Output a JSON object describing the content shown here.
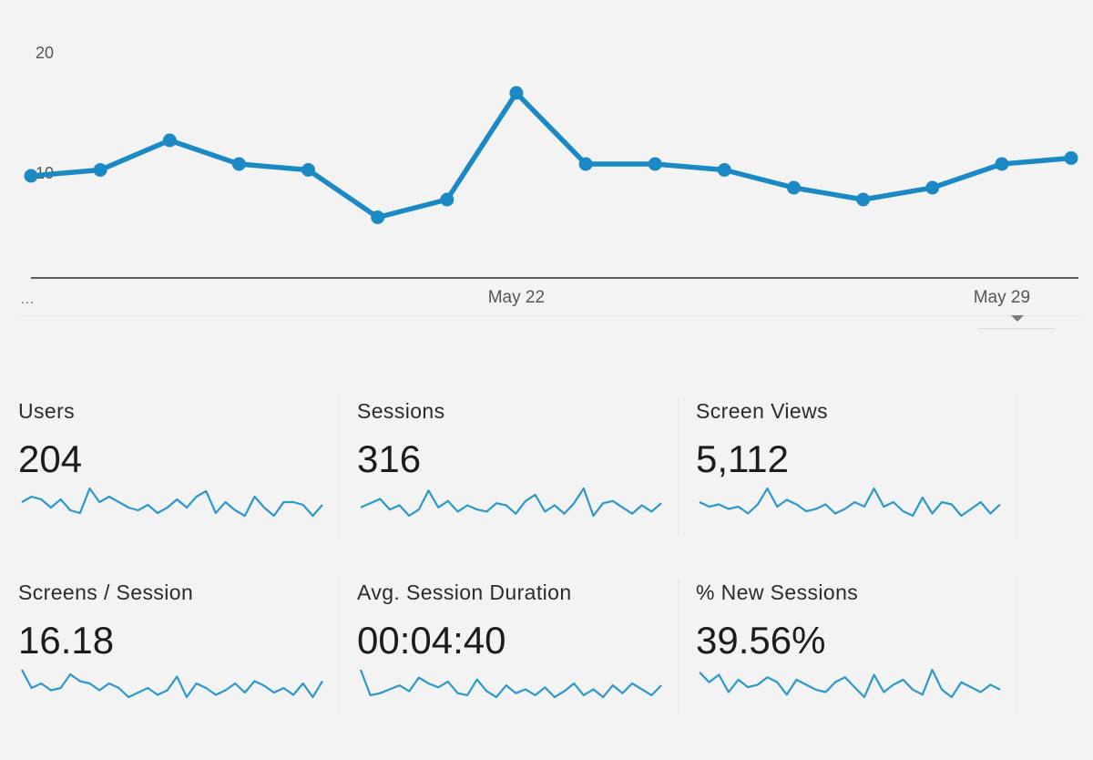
{
  "chart_data": {
    "type": "line",
    "x": [
      "",
      "",
      "",
      "",
      "",
      "",
      "",
      "May 22",
      "",
      "",
      "",
      "",
      "",
      "",
      "May 29",
      ""
    ],
    "values": [
      10,
      10.5,
      13,
      11,
      10.5,
      6.5,
      8,
      17,
      11,
      11,
      10.5,
      9,
      8,
      9,
      11,
      11.5
    ],
    "x_tick_labels": [
      "…",
      "May 22",
      "May 29"
    ],
    "y_tick_labels": [
      "20",
      "10"
    ],
    "ylim": [
      0,
      20
    ],
    "grid": false,
    "color": "#1b8ac4"
  },
  "dropdown": {
    "icon": "caret-down-icon"
  },
  "metrics": [
    {
      "label": "Users",
      "value": "204",
      "spark": [
        6,
        8,
        7,
        4,
        7,
        3,
        2,
        11,
        6,
        8,
        6,
        4,
        3,
        5,
        2,
        4,
        7,
        4,
        8,
        10,
        2,
        6,
        3,
        1,
        8,
        4,
        1,
        6,
        6,
        5,
        1,
        5
      ]
    },
    {
      "label": "Sessions",
      "value": "316",
      "spark": [
        5,
        7,
        9,
        4,
        6,
        1,
        4,
        13,
        5,
        8,
        3,
        6,
        4,
        3,
        7,
        6,
        2,
        8,
        11,
        3,
        6,
        2,
        7,
        14,
        1,
        7,
        8,
        5,
        2,
        6,
        3,
        7
      ]
    },
    {
      "label": "Screen Views",
      "value": "5,112",
      "spark": [
        7,
        5,
        6,
        4,
        5,
        2,
        6,
        13,
        5,
        8,
        6,
        3,
        4,
        6,
        2,
        4,
        7,
        5,
        13,
        5,
        7,
        3,
        1,
        9,
        2,
        7,
        6,
        1,
        4,
        7,
        2,
        6
      ]
    },
    {
      "label": "Screens / Session",
      "value": "16.18",
      "spark": [
        14,
        6,
        8,
        5,
        6,
        12,
        9,
        8,
        5,
        8,
        6,
        2,
        4,
        6,
        3,
        5,
        11,
        2,
        8,
        6,
        3,
        5,
        8,
        4,
        9,
        7,
        4,
        6,
        3,
        8,
        2,
        9
      ]
    },
    {
      "label": "Avg. Session Duration",
      "value": "00:04:40",
      "spark": [
        16,
        3,
        4,
        6,
        8,
        5,
        12,
        9,
        7,
        10,
        4,
        3,
        11,
        5,
        2,
        8,
        4,
        6,
        3,
        7,
        2,
        5,
        9,
        3,
        6,
        2,
        8,
        4,
        9,
        6,
        3,
        8
      ]
    },
    {
      "label": "% New Sessions",
      "value": "39.56%",
      "spark": [
        12,
        8,
        11,
        4,
        9,
        6,
        7,
        10,
        8,
        3,
        9,
        7,
        5,
        4,
        8,
        10,
        6,
        2,
        11,
        4,
        7,
        9,
        5,
        3,
        13,
        5,
        2,
        8,
        6,
        4,
        7,
        5
      ]
    }
  ]
}
